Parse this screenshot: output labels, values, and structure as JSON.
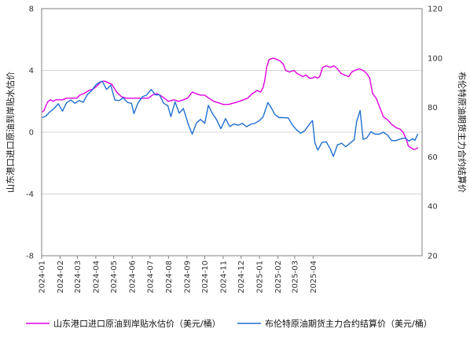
{
  "chart_data": {
    "type": "line",
    "x_ticks": [
      "2024-01",
      "2024-02",
      "2024-03",
      "2024-04",
      "2024-05",
      "2024-06",
      "2024-07",
      "2024-08",
      "2024-09",
      "2024-10",
      "2024-11",
      "2024-12",
      "2025-01",
      "2025-02",
      "2025-03",
      "2025-04"
    ],
    "y_left": {
      "label": "山东港口进口原油到岸贴水估价",
      "ticks": [
        "8",
        "4",
        "0",
        "-4",
        "-8"
      ],
      "ylim": [
        -8,
        8
      ]
    },
    "y_right": {
      "label": "布伦特原油期货主力合约结算价",
      "ticks": [
        "120",
        "100",
        "80",
        "60",
        "40",
        "20"
      ],
      "ylim": [
        20,
        120
      ]
    },
    "grid": true,
    "legend_position": "bottom",
    "series": [
      {
        "name": "山东港口进口原油到岸贴水估价（美元/桶）",
        "axis": "left",
        "color": "#e000e0",
        "points": [
          [
            "2024-01-02",
            1.3
          ],
          [
            "2024-01-05",
            1.4
          ],
          [
            "2024-01-09",
            1.8
          ],
          [
            "2024-01-12",
            2.0
          ],
          [
            "2024-01-16",
            2.1
          ],
          [
            "2024-01-20",
            2.0
          ],
          [
            "2024-01-25",
            2.1
          ],
          [
            "2024-01-31",
            2.1
          ],
          [
            "2024-02-05",
            2.1
          ],
          [
            "2024-02-12",
            2.2
          ],
          [
            "2024-02-20",
            2.2
          ],
          [
            "2024-02-29",
            2.2
          ],
          [
            "2024-03-05",
            2.4
          ],
          [
            "2024-03-12",
            2.5
          ],
          [
            "2024-03-20",
            2.7
          ],
          [
            "2024-03-28",
            2.8
          ],
          [
            "2024-04-03",
            3.0
          ],
          [
            "2024-04-08",
            3.2
          ],
          [
            "2024-04-12",
            3.3
          ],
          [
            "2024-04-16",
            3.3
          ],
          [
            "2024-04-22",
            3.2
          ],
          [
            "2024-04-28",
            3.1
          ],
          [
            "2024-05-06",
            2.6
          ],
          [
            "2024-05-14",
            2.3
          ],
          [
            "2024-05-22",
            2.2
          ],
          [
            "2024-05-31",
            2.2
          ],
          [
            "2024-06-05",
            2.2
          ],
          [
            "2024-06-12",
            2.2
          ],
          [
            "2024-06-20",
            2.2
          ],
          [
            "2024-06-28",
            2.2
          ],
          [
            "2024-07-05",
            2.4
          ],
          [
            "2024-07-12",
            2.5
          ],
          [
            "2024-07-18",
            2.4
          ],
          [
            "2024-07-25",
            2.2
          ],
          [
            "2024-08-01",
            2.0
          ],
          [
            "2024-08-10",
            2.1
          ],
          [
            "2024-08-18",
            2.0
          ],
          [
            "2024-08-26",
            2.1
          ],
          [
            "2024-09-02",
            2.2
          ],
          [
            "2024-09-10",
            2.6
          ],
          [
            "2024-09-16",
            2.5
          ],
          [
            "2024-09-24",
            2.4
          ],
          [
            "2024-10-01",
            2.4
          ],
          [
            "2024-10-08",
            2.2
          ],
          [
            "2024-10-16",
            2.0
          ],
          [
            "2024-10-24",
            1.9
          ],
          [
            "2024-11-01",
            1.8
          ],
          [
            "2024-11-10",
            1.8
          ],
          [
            "2024-11-20",
            1.9
          ],
          [
            "2024-11-28",
            2.0
          ],
          [
            "2024-12-05",
            2.1
          ],
          [
            "2024-12-12",
            2.2
          ],
          [
            "2024-12-20",
            2.5
          ],
          [
            "2024-12-28",
            2.7
          ],
          [
            "2025-01-03",
            2.6
          ],
          [
            "2025-01-07",
            2.9
          ],
          [
            "2025-01-10",
            3.4
          ],
          [
            "2025-01-13",
            4.2
          ],
          [
            "2025-01-17",
            4.7
          ],
          [
            "2025-01-24",
            4.8
          ],
          [
            "2025-01-31",
            4.7
          ],
          [
            "2025-02-05",
            4.6
          ],
          [
            "2025-02-10",
            4.4
          ],
          [
            "2025-02-14",
            4.0
          ],
          [
            "2025-02-20",
            3.9
          ],
          [
            "2025-02-28",
            4.0
          ],
          [
            "2025-03-05",
            3.8
          ],
          [
            "2025-03-10",
            3.7
          ],
          [
            "2025-03-15",
            3.6
          ],
          [
            "2025-03-20",
            3.7
          ],
          [
            "2025-03-26",
            3.5
          ],
          [
            "2025-03-31",
            3.5
          ],
          [
            "2025-04-04",
            3.6
          ],
          [
            "2025-04-08",
            3.5
          ],
          [
            "2025-04-12",
            3.6
          ],
          [
            "2025-04-17",
            4.2
          ],
          [
            "2025-04-23",
            4.3
          ],
          [
            "2025-04-30",
            4.2
          ],
          [
            "2025-05-06",
            4.3
          ],
          [
            "2025-05-12",
            4.1
          ],
          [
            "2025-05-18",
            3.8
          ],
          [
            "2025-05-24",
            3.7
          ],
          [
            "2025-05-31",
            3.6
          ],
          [
            "2025-06-05",
            3.9
          ],
          [
            "2025-06-10",
            4.0
          ],
          [
            "2025-06-17",
            4.1
          ],
          [
            "2025-06-24",
            4.0
          ],
          [
            "2025-06-30",
            3.8
          ],
          [
            "2025-07-05",
            3.5
          ],
          [
            "2025-07-10",
            2.5
          ],
          [
            "2025-07-16",
            2.2
          ],
          [
            "2025-07-22",
            1.6
          ],
          [
            "2025-07-28",
            1.0
          ],
          [
            "2025-08-04",
            0.8
          ],
          [
            "2025-08-11",
            0.5
          ],
          [
            "2025-08-18",
            0.3
          ],
          [
            "2025-08-25",
            0.2
          ],
          [
            "2025-08-30",
            0.0
          ],
          [
            "2025-09-04",
            -0.4
          ],
          [
            "2025-09-08",
            -0.9
          ],
          [
            "2025-09-12",
            -1.0
          ],
          [
            "2025-09-16",
            -1.1
          ],
          [
            "2025-09-20",
            -1.1
          ],
          [
            "2025-09-24",
            -1.0
          ]
        ]
      },
      {
        "name": "布伦特原油期货主力合约结算价（美元/桶）",
        "axis": "right",
        "color": "#1f6fd1",
        "points": [
          [
            "2024-01-02",
            75.9
          ],
          [
            "2024-01-08",
            76.5
          ],
          [
            "2024-01-15",
            78.3
          ],
          [
            "2024-01-22",
            79.6
          ],
          [
            "2024-01-29",
            81.5
          ],
          [
            "2024-02-05",
            78.5
          ],
          [
            "2024-02-12",
            82.0
          ],
          [
            "2024-02-19",
            83.0
          ],
          [
            "2024-02-26",
            81.7
          ],
          [
            "2024-03-04",
            82.8
          ],
          [
            "2024-03-11",
            82.1
          ],
          [
            "2024-03-18",
            85.3
          ],
          [
            "2024-03-25",
            86.8
          ],
          [
            "2024-04-02",
            89.4
          ],
          [
            "2024-04-09",
            90.4
          ],
          [
            "2024-04-12",
            90.5
          ],
          [
            "2024-04-19",
            87.3
          ],
          [
            "2024-04-26",
            89.0
          ],
          [
            "2024-05-03",
            83.0
          ],
          [
            "2024-05-10",
            82.8
          ],
          [
            "2024-05-17",
            83.9
          ],
          [
            "2024-05-24",
            82.1
          ],
          [
            "2024-05-31",
            81.6
          ],
          [
            "2024-06-04",
            77.5
          ],
          [
            "2024-06-11",
            81.9
          ],
          [
            "2024-06-18",
            84.3
          ],
          [
            "2024-06-25",
            85.0
          ],
          [
            "2024-07-03",
            87.3
          ],
          [
            "2024-07-10",
            85.1
          ],
          [
            "2024-07-17",
            85.1
          ],
          [
            "2024-07-24",
            81.7
          ],
          [
            "2024-07-31",
            80.7
          ],
          [
            "2024-08-05",
            76.3
          ],
          [
            "2024-08-12",
            82.3
          ],
          [
            "2024-08-19",
            77.7
          ],
          [
            "2024-08-26",
            79.6
          ],
          [
            "2024-09-04",
            72.7
          ],
          [
            "2024-09-10",
            69.2
          ],
          [
            "2024-09-17",
            73.7
          ],
          [
            "2024-09-24",
            75.2
          ],
          [
            "2024-10-01",
            73.6
          ],
          [
            "2024-10-07",
            80.9
          ],
          [
            "2024-10-14",
            77.5
          ],
          [
            "2024-10-21",
            75.0
          ],
          [
            "2024-10-28",
            71.4
          ],
          [
            "2024-11-05",
            75.5
          ],
          [
            "2024-11-12",
            72.3
          ],
          [
            "2024-11-19",
            73.3
          ],
          [
            "2024-11-26",
            72.8
          ],
          [
            "2024-12-03",
            73.6
          ],
          [
            "2024-12-10",
            72.2
          ],
          [
            "2024-12-17",
            73.2
          ],
          [
            "2024-12-24",
            73.6
          ],
          [
            "2024-12-31",
            74.6
          ],
          [
            "2025-01-07",
            76.2
          ],
          [
            "2025-01-15",
            82.0
          ],
          [
            "2025-01-20",
            80.2
          ],
          [
            "2025-01-27",
            77.1
          ],
          [
            "2025-02-03",
            75.9
          ],
          [
            "2025-02-10",
            75.9
          ],
          [
            "2025-02-18",
            75.8
          ],
          [
            "2025-02-25",
            73.0
          ],
          [
            "2025-03-04",
            71.0
          ],
          [
            "2025-03-11",
            69.6
          ],
          [
            "2025-03-18",
            70.6
          ],
          [
            "2025-03-25",
            73.0
          ],
          [
            "2025-03-31",
            74.7
          ],
          [
            "2025-04-04",
            65.6
          ],
          [
            "2025-04-09",
            62.8
          ],
          [
            "2025-04-16",
            65.9
          ],
          [
            "2025-04-23",
            66.1
          ],
          [
            "2025-04-30",
            63.1
          ],
          [
            "2025-05-05",
            60.2
          ],
          [
            "2025-05-12",
            64.9
          ],
          [
            "2025-05-19",
            65.5
          ],
          [
            "2025-05-26",
            64.1
          ],
          [
            "2025-06-02",
            65.6
          ],
          [
            "2025-06-09",
            66.9
          ],
          [
            "2025-06-13",
            74.2
          ],
          [
            "2025-06-19",
            78.8
          ],
          [
            "2025-06-24",
            67.1
          ],
          [
            "2025-06-30",
            67.6
          ],
          [
            "2025-07-07",
            70.2
          ],
          [
            "2025-07-14",
            69.2
          ],
          [
            "2025-07-21",
            69.2
          ],
          [
            "2025-07-28",
            70.0
          ],
          [
            "2025-08-04",
            68.8
          ],
          [
            "2025-08-11",
            66.6
          ],
          [
            "2025-08-18",
            66.6
          ],
          [
            "2025-08-25",
            67.2
          ],
          [
            "2025-08-29",
            67.5
          ],
          [
            "2025-09-03",
            67.6
          ],
          [
            "2025-09-09",
            66.4
          ],
          [
            "2025-09-15",
            67.4
          ],
          [
            "2025-09-19",
            66.7
          ],
          [
            "2025-09-24",
            69.3
          ]
        ]
      }
    ]
  }
}
